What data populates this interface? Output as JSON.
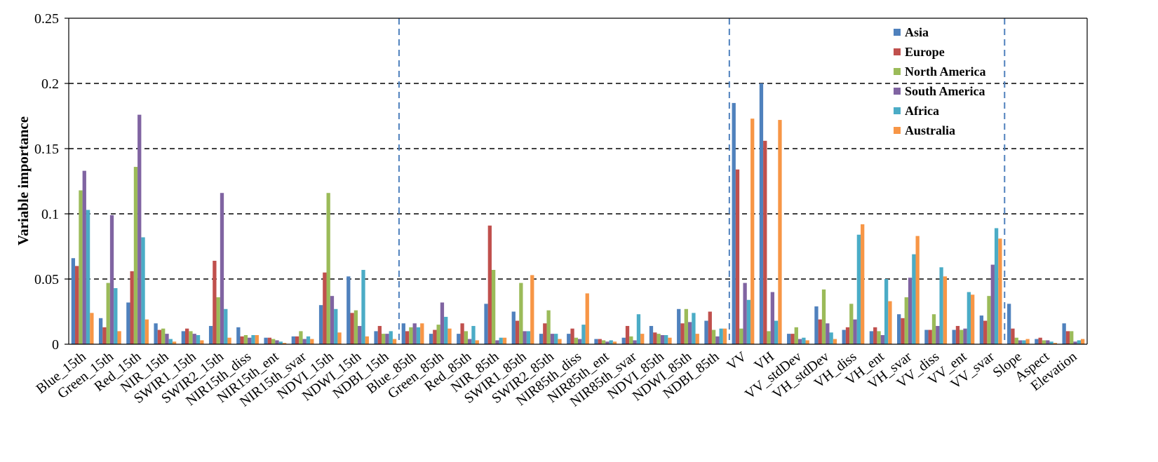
{
  "chart_data": {
    "type": "bar",
    "ylabel": "Variable importance",
    "xlabel": "",
    "ylim": [
      0,
      0.25
    ],
    "yticks": [
      "0",
      "0.05",
      "0.1",
      "0.15",
      "0.2",
      "0.25"
    ],
    "grid": "dashed horizontal at 0.05, 0.1, 0.15, 0.2",
    "legend_position": "top-right",
    "group_separators_after": [
      "NDBI_15th",
      "NDBI_85th",
      "VV_svar"
    ],
    "categories": [
      "Blue_15th",
      "Green_15th",
      "Red_15th",
      "NIR_15th",
      "SWIR1_15th",
      "SWIR2_15th",
      "NIR15th_diss",
      "NIR15th_ent",
      "NIR15th_svar",
      "NDVI_15th",
      "NDWI_15th",
      "NDBI_15th",
      "Blue_85th",
      "Green_85th",
      "Red_85th",
      "NIR_85th",
      "SWIR1_85th",
      "SWIR2_85th",
      "NIR85th_diss",
      "NIR85th_ent",
      "NIR85th_svar",
      "NDVI_85th",
      "NDWI_85th",
      "NDBI_85th",
      "VV",
      "VH",
      "VV_stdDev",
      "VH_stdDev",
      "VH_diss",
      "VH_ent",
      "VH_svar",
      "VV_diss",
      "VV_ent",
      "VV_svar",
      "Slope",
      "Aspect",
      "Elevation"
    ],
    "series": [
      {
        "name": "Asia",
        "color": "#4f81bd",
        "values": [
          0.066,
          0.02,
          0.032,
          0.016,
          0.01,
          0.014,
          0.013,
          0.005,
          0.006,
          0.03,
          0.052,
          0.01,
          0.016,
          0.008,
          0.008,
          0.031,
          0.025,
          0.008,
          0.008,
          0.004,
          0.005,
          0.014,
          0.027,
          0.018,
          0.185,
          0.2,
          0.008,
          0.029,
          0.011,
          0.01,
          0.023,
          0.011,
          0.011,
          0.022,
          0.031,
          0.004,
          0.016
        ]
      },
      {
        "name": "Europe",
        "color": "#c0504d",
        "values": [
          0.06,
          0.013,
          0.056,
          0.011,
          0.012,
          0.064,
          0.006,
          0.005,
          0.006,
          0.055,
          0.024,
          0.014,
          0.01,
          0.011,
          0.016,
          0.091,
          0.018,
          0.016,
          0.012,
          0.004,
          0.014,
          0.009,
          0.016,
          0.025,
          0.134,
          0.156,
          0.008,
          0.019,
          0.013,
          0.013,
          0.02,
          0.011,
          0.014,
          0.018,
          0.012,
          0.005,
          0.01
        ]
      },
      {
        "name": "North America",
        "color": "#9bbb59",
        "values": [
          0.118,
          0.047,
          0.136,
          0.012,
          0.01,
          0.036,
          0.007,
          0.004,
          0.01,
          0.116,
          0.026,
          0.008,
          0.013,
          0.015,
          0.01,
          0.057,
          0.047,
          0.026,
          0.005,
          0.003,
          0.006,
          0.008,
          0.027,
          0.011,
          0.012,
          0.01,
          0.013,
          0.042,
          0.031,
          0.01,
          0.036,
          0.023,
          0.011,
          0.037,
          0.005,
          0.003,
          0.01
        ]
      },
      {
        "name": "South America",
        "color": "#8064a2",
        "values": [
          0.133,
          0.099,
          0.176,
          0.008,
          0.008,
          0.116,
          0.005,
          0.003,
          0.004,
          0.037,
          0.014,
          0.008,
          0.016,
          0.032,
          0.004,
          0.003,
          0.01,
          0.008,
          0.004,
          0.002,
          0.003,
          0.007,
          0.017,
          0.006,
          0.047,
          0.04,
          0.004,
          0.016,
          0.019,
          0.007,
          0.051,
          0.014,
          0.012,
          0.061,
          0.003,
          0.003,
          0.002
        ]
      },
      {
        "name": "Africa",
        "color": "#4bacc6",
        "values": [
          0.103,
          0.043,
          0.082,
          0.004,
          0.007,
          0.027,
          0.007,
          0.002,
          0.006,
          0.027,
          0.057,
          0.01,
          0.013,
          0.021,
          0.014,
          0.005,
          0.01,
          0.008,
          0.015,
          0.003,
          0.023,
          0.007,
          0.024,
          0.012,
          0.034,
          0.018,
          0.005,
          0.009,
          0.084,
          0.05,
          0.069,
          0.059,
          0.04,
          0.089,
          0.003,
          0.002,
          0.003
        ]
      },
      {
        "name": "Australia",
        "color": "#f79646",
        "values": [
          0.024,
          0.01,
          0.019,
          0.002,
          0.003,
          0.005,
          0.007,
          0.001,
          0.004,
          0.009,
          0.006,
          0.004,
          0.016,
          0.012,
          0.003,
          0.005,
          0.053,
          0.004,
          0.039,
          0.002,
          0.008,
          0.005,
          0.008,
          0.012,
          0.173,
          0.172,
          0.003,
          0.004,
          0.092,
          0.033,
          0.083,
          0.052,
          0.038,
          0.081,
          0.004,
          0.001,
          0.004
        ]
      }
    ]
  }
}
